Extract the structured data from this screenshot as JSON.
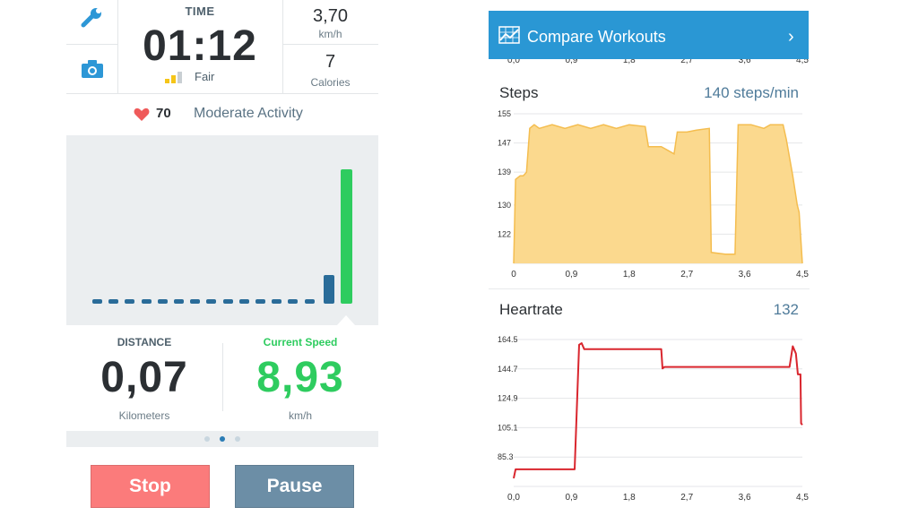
{
  "left": {
    "time": {
      "label": "TIME",
      "value": "01:12",
      "quality_label": "Fair",
      "quality_level": 2,
      "quality_max": 3
    },
    "speed_small": {
      "value": "3,70",
      "unit": "km/h"
    },
    "calories": {
      "value": "7",
      "unit": "Calories"
    },
    "heart": {
      "value": "70",
      "activity": "Moderate Activity"
    },
    "speed_history": {
      "idle_segments": 14,
      "bars": [
        {
          "level": 0.2
        },
        {
          "level": 1.0
        }
      ]
    },
    "distance": {
      "label": "DISTANCE",
      "value": "0,07",
      "unit": "Kilometers"
    },
    "current_speed": {
      "label": "Current Speed",
      "value": "8,93",
      "unit": "km/h"
    },
    "page_dots": {
      "count": 3,
      "active": 1
    },
    "buttons": {
      "stop": "Stop",
      "pause": "Pause"
    },
    "colors": {
      "green": "#2ecc5f",
      "blue": "#2a6c99",
      "stop": "#fb7b7b",
      "pause": "#6c8ea6",
      "heart": "#ef5a5a"
    }
  },
  "right": {
    "header": {
      "title": "Compare Workouts",
      "chevron": "›",
      "icon": "chart-icon"
    },
    "top_axis_ticks": [
      "0,0",
      "0,9",
      "1,8",
      "2,7",
      "3,6",
      "4,5"
    ],
    "steps": {
      "title": "Steps",
      "value": "140 steps/min"
    },
    "heartrate": {
      "title": "Heartrate",
      "value": "132"
    }
  },
  "chart_data": [
    {
      "type": "area",
      "title": "Steps",
      "color": "#f4bd4f",
      "fill": "#fbd98e",
      "x_ticks": [
        "0",
        "0,9",
        "1,8",
        "2,7",
        "3,6",
        "4,5"
      ],
      "y_ticks": [
        "155",
        "147",
        "139",
        "130",
        "122"
      ],
      "xlim": [
        0,
        4.5
      ],
      "ylim": [
        114,
        155
      ],
      "points": [
        [
          0,
          114
        ],
        [
          0.03,
          137
        ],
        [
          0.1,
          138
        ],
        [
          0.15,
          138
        ],
        [
          0.2,
          139
        ],
        [
          0.25,
          151
        ],
        [
          0.32,
          152
        ],
        [
          0.4,
          151
        ],
        [
          0.6,
          152
        ],
        [
          0.8,
          151
        ],
        [
          1.0,
          152
        ],
        [
          1.2,
          151
        ],
        [
          1.4,
          152
        ],
        [
          1.6,
          151
        ],
        [
          1.8,
          152
        ],
        [
          2.05,
          151.5
        ],
        [
          2.1,
          146
        ],
        [
          2.3,
          146
        ],
        [
          2.4,
          145
        ],
        [
          2.5,
          144
        ],
        [
          2.55,
          150
        ],
        [
          2.7,
          150
        ],
        [
          2.85,
          150.5
        ],
        [
          3.05,
          151
        ],
        [
          3.08,
          117
        ],
        [
          3.3,
          116.5
        ],
        [
          3.45,
          116.5
        ],
        [
          3.5,
          152
        ],
        [
          3.7,
          152
        ],
        [
          3.9,
          151
        ],
        [
          4.0,
          152
        ],
        [
          4.2,
          152
        ],
        [
          4.25,
          148
        ],
        [
          4.3,
          143
        ],
        [
          4.35,
          138
        ],
        [
          4.42,
          130
        ],
        [
          4.45,
          128
        ],
        [
          4.5,
          114
        ]
      ]
    },
    {
      "type": "line",
      "title": "Heartrate",
      "color": "#d9262e",
      "x_ticks": [
        "0,0",
        "0,9",
        "1,8",
        "2,7",
        "3,6",
        "4,5"
      ],
      "y_ticks": [
        "164.5",
        "144.7",
        "124.9",
        "105.1",
        "85.3"
      ],
      "xlim": [
        0,
        4.5
      ],
      "ylim": [
        65.5,
        164.5
      ],
      "points": [
        [
          0,
          71
        ],
        [
          0.03,
          77
        ],
        [
          0.95,
          77
        ],
        [
          1.02,
          161
        ],
        [
          1.06,
          162
        ],
        [
          1.1,
          158
        ],
        [
          2.3,
          158
        ],
        [
          2.32,
          145
        ],
        [
          2.35,
          146
        ],
        [
          4.3,
          146
        ],
        [
          4.35,
          160
        ],
        [
          4.4,
          155
        ],
        [
          4.43,
          141
        ],
        [
          4.47,
          141
        ],
        [
          4.48,
          108
        ],
        [
          4.5,
          107
        ]
      ]
    }
  ]
}
